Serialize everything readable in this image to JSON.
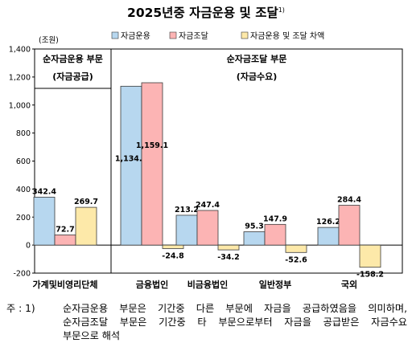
{
  "chart_data": {
    "type": "bar",
    "title": "2025년중 자금운용 및 조달",
    "title_sup": "1)",
    "ylabel": "(조원)",
    "ylim": [
      -200,
      1400
    ],
    "yticks": [
      -200,
      0,
      200,
      400,
      600,
      800,
      1000,
      1200,
      1400
    ],
    "ytick_labels": [
      "-200",
      "0",
      "200",
      "400",
      "600",
      "800",
      "1,000",
      "1,200",
      "1,400"
    ],
    "categories": [
      "가계및비영리단체",
      "금융법인",
      "비금융법인",
      "일반정부",
      "국외"
    ],
    "series": [
      {
        "name": "자금운용",
        "color": "#b7d7ef",
        "values": [
          342.4,
          1134.3,
          213.2,
          95.3,
          126.2
        ],
        "labels": [
          "342.4",
          "1,134.3",
          "213.2",
          "95.3",
          "126.2"
        ]
      },
      {
        "name": "자금조달",
        "color": "#fcb4b4",
        "values": [
          72.7,
          1159.1,
          247.4,
          147.9,
          284.4
        ],
        "labels": [
          "72.7",
          "1,159.1",
          "247.4",
          "147.9",
          "284.4"
        ]
      },
      {
        "name": "자금운용 및 조달 차액",
        "color": "#fde9a9",
        "values": [
          269.7,
          -24.8,
          -34.2,
          -52.6,
          -158.2
        ],
        "labels": [
          "269.7",
          "-24.8",
          "-34.2",
          "-52.6",
          "-158.2"
        ]
      }
    ],
    "legend_placement": "top",
    "grid": false,
    "annotations": [
      {
        "line1": "순자금운용 부문",
        "line2": "(자금공급)"
      },
      {
        "line1": "순자금조달 부문",
        "line2": "(자금수요)"
      }
    ]
  },
  "note": {
    "label": "주 : 1)",
    "line1": "순자금운용 부문은 기간중 다른 부문에 자금을 공급하였음을 의미하며,",
    "line2": "순자금조달 부문은 기간중 타 부문으로부터 자금을 공급받은 자금수요",
    "line3": "부문으로 해석"
  }
}
